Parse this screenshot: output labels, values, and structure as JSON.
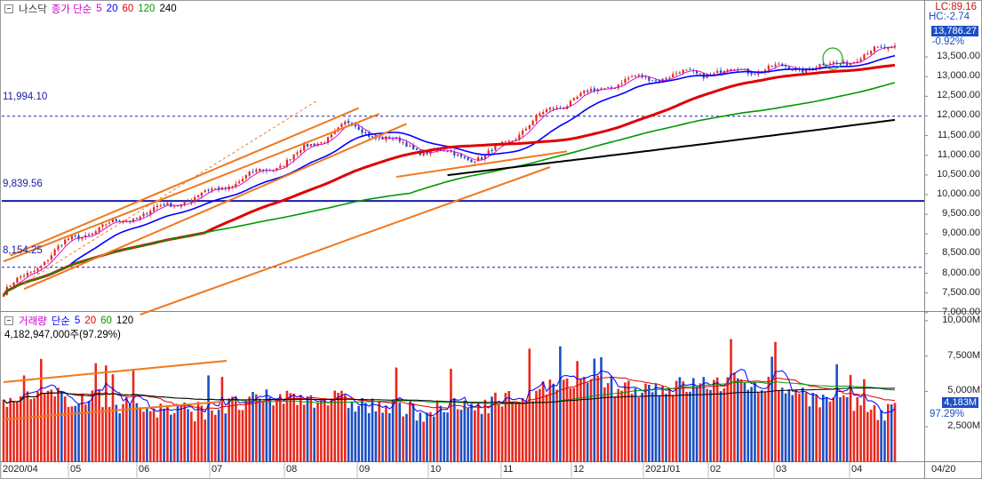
{
  "price_panel": {
    "index_name": "나스닥",
    "legend_prefix": "종가 단순",
    "ma_periods": [
      {
        "label": "5",
        "color": "#cc00cc"
      },
      {
        "label": "20",
        "color": "#0000ff"
      },
      {
        "label": "60",
        "color": "#e00000"
      },
      {
        "label": "120",
        "color": "#009900"
      },
      {
        "label": "240",
        "color": "#000000"
      }
    ],
    "lc_text": "LC:89.16",
    "hc_text": "HC:-2.74",
    "current_price": "13,786.27",
    "change_pct": "-0.92%",
    "y_ticks": [
      "7,000.00",
      "7,500.00",
      "8,000.00",
      "8,500.00",
      "9,000.00",
      "9,500.00",
      "10,000.00",
      "10,500.00",
      "11,000.00",
      "11,500.00",
      "12,000.00",
      "12,500.00",
      "13,000.00",
      "13,500.00"
    ],
    "y_tick_values": [
      7000,
      7500,
      8000,
      8500,
      9000,
      9500,
      10000,
      10500,
      11000,
      11500,
      12000,
      12500,
      13000,
      13500
    ],
    "y_range": [
      6950,
      14450
    ],
    "hlines": [
      {
        "label": "11,994.10",
        "value": 11994.1,
        "style": "dotted"
      },
      {
        "label": "9,839.56",
        "value": 9839.56,
        "style": "solid"
      },
      {
        "label": "8,154.25",
        "value": 8154.25,
        "style": "dotted"
      }
    ],
    "colors": {
      "up": "#e8281c",
      "down": "#1b4fc4",
      "hline": "#1a1aa8",
      "trend": "#f07820"
    }
  },
  "volume_panel": {
    "title": "거래량",
    "legend_prefix": "단순",
    "ma_periods": [
      {
        "label": "5",
        "color": "#0000ff"
      },
      {
        "label": "20",
        "color": "#e00000"
      },
      {
        "label": "60",
        "color": "#009900"
      },
      {
        "label": "120",
        "color": "#000000"
      }
    ],
    "info_text": "4,182,947,000주(97.29%)",
    "current_volume": "4,183M",
    "current_pct": "97.29%",
    "y_ticks": [
      "2,500M",
      "5,000M",
      "7,500M",
      "10,000M"
    ],
    "y_tick_values": [
      2500,
      5000,
      7500,
      10000
    ],
    "y_range": [
      0,
      10300
    ]
  },
  "x_labels": [
    "2020/04",
    "05",
    "06",
    "07",
    "08",
    "09",
    "10",
    "11",
    "12",
    "2021/01",
    "02",
    "03",
    "04",
    "04/20"
  ],
  "chart_data": {
    "type": "candlestick",
    "title": "나스닥",
    "x_range": [
      "2020-03-27",
      "2021-04-20"
    ],
    "approx_monthly_close": [
      {
        "month": "2020-04",
        "close": 8890
      },
      {
        "month": "2020-05",
        "close": 9490
      },
      {
        "month": "2020-06",
        "close": 10060
      },
      {
        "month": "2020-07",
        "close": 10745
      },
      {
        "month": "2020-08",
        "close": 11775
      },
      {
        "month": "2020-09",
        "close": 11170
      },
      {
        "month": "2020-10",
        "close": 10910
      },
      {
        "month": "2020-11",
        "close": 12200
      },
      {
        "month": "2020-12",
        "close": 12890
      },
      {
        "month": "2021-01",
        "close": 13070
      },
      {
        "month": "2021-02",
        "close": 13190
      },
      {
        "month": "2021-03",
        "close": 13250
      },
      {
        "month": "2021-04",
        "close": 13786.27
      }
    ],
    "last_volume_m": 4183
  }
}
